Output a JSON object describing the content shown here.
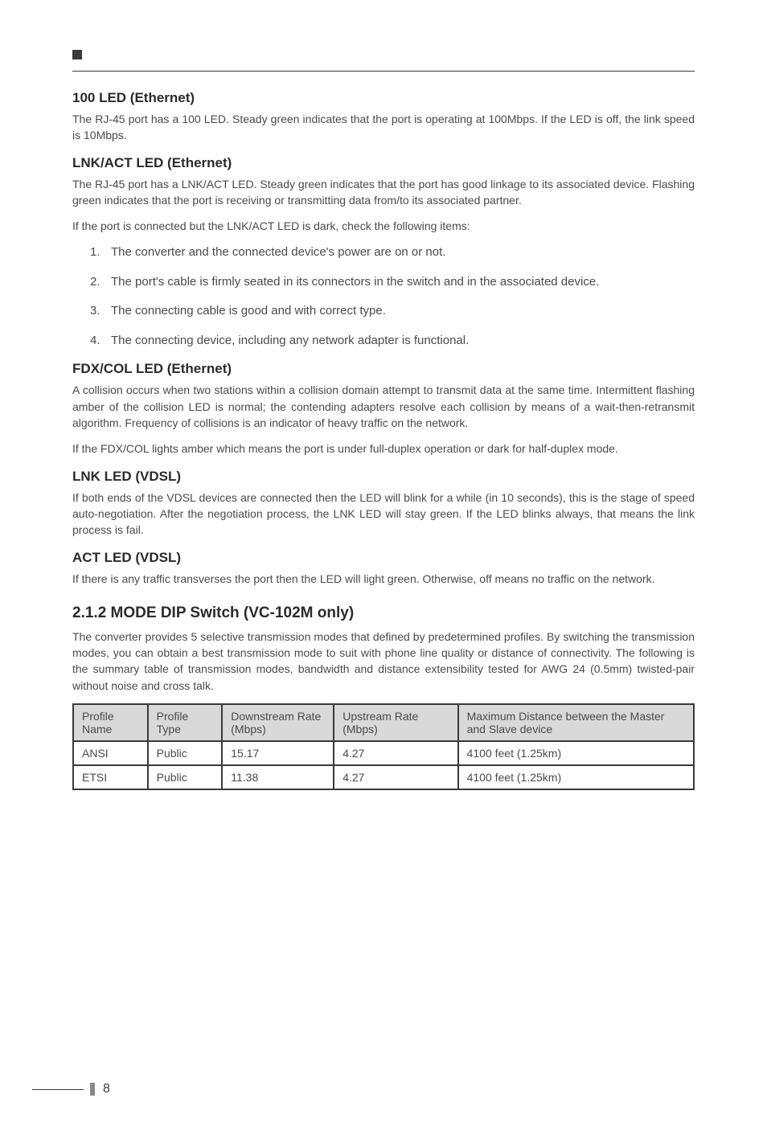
{
  "sections": {
    "s1": {
      "heading": "100 LED (Ethernet)",
      "p1": "The RJ-45 port has a 100 LED. Steady green indicates that the port is operating at 100Mbps. If the LED is off, the link speed is 10Mbps."
    },
    "s2": {
      "heading": "LNK/ACT LED (Ethernet)",
      "p1": "The RJ-45 port has a LNK/ACT LED. Steady green indicates that the port has good linkage to its associated device. Flashing green indicates that the port is receiving or transmitting data from/to its associated partner.",
      "p2": "If the port is connected but the LNK/ACT LED is dark, check the following items:",
      "list": {
        "i1": "The converter and the connected device's power are on or not.",
        "i2": "The port's cable is firmly seated in its connectors in the switch and in the associated device.",
        "i3": "The connecting cable is good and with correct type.",
        "i4": "The connecting device, including any network adapter is functional."
      }
    },
    "s3": {
      "heading": "FDX/COL LED (Ethernet)",
      "p1": "A collision occurs when two stations within a collision domain attempt to transmit data at the same time. Intermittent flashing amber of the collision LED is normal; the contending adapters resolve each collision by means of a wait-then-retransmit algorithm. Frequency of collisions is an indicator of heavy traffic on the network.",
      "p2": "If the FDX/COL lights amber which means the port is under full-duplex operation or dark for half-duplex mode."
    },
    "s4": {
      "heading": "LNK LED (VDSL)",
      "p1": "If both ends of the VDSL devices are connected then the LED will blink for a while (in 10 seconds), this is the stage of speed auto-negotiation. After the negotiation process, the LNK LED will stay green. If the LED blinks always, that means the link process is fail."
    },
    "s5": {
      "heading": "ACT LED (VDSL)",
      "p1": "If there is any traffic transverses the port then the LED will light green. Otherwise, off means no traffic on the network."
    },
    "s6": {
      "heading": "2.1.2 MODE DIP Switch (VC-102M only)",
      "p1": "The converter provides 5 selective transmission modes that defined by predetermined profiles. By switching the transmission modes, you can obtain a best transmission mode to suit with phone line quality or distance of connectivity. The following is the summary table of transmission modes, bandwidth and distance extensibility tested for AWG 24 (0.5mm) twisted-pair without noise and cross talk."
    }
  },
  "table": {
    "headers": {
      "c1": "Profile Name",
      "c2": "Profile Type",
      "c3": "Downstream Rate (Mbps)",
      "c4": "Upstream Rate (Mbps)",
      "c5": "Maximum Distance between the Master  and Slave device"
    },
    "rows": {
      "r1": {
        "c1": "ANSI",
        "c2": "Public",
        "c3": "15.17",
        "c4": "4.27",
        "c5": "4100 feet (1.25km)"
      },
      "r2": {
        "c1": "ETSI",
        "c2": "Public",
        "c3": "11.38",
        "c4": "4.27",
        "c5": "4100 feet (1.25km)"
      }
    },
    "col_widths": {
      "c1": "12%",
      "c2": "12%",
      "c3": "18%",
      "c4": "20%",
      "c5": "38%"
    }
  },
  "page_number": "8"
}
